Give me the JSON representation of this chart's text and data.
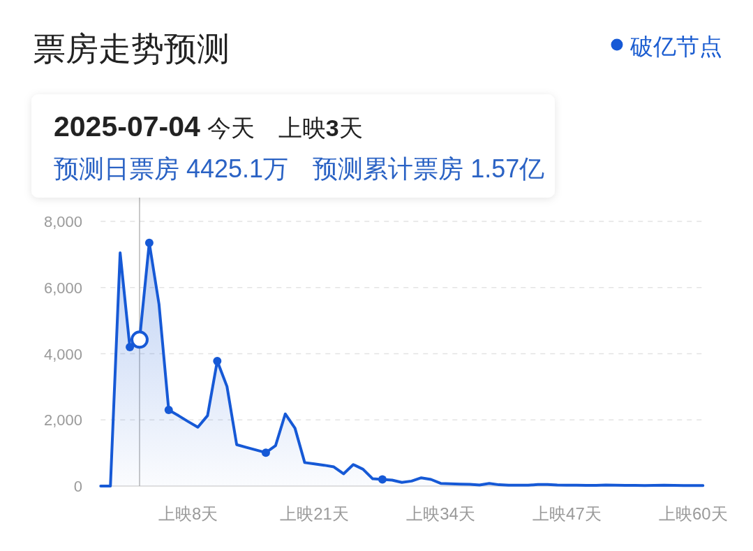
{
  "chart_data": {
    "type": "area",
    "title": "票房走势预测",
    "categories": [
      null,
      null,
      null,
      null,
      null,
      null,
      null,
      null,
      null,
      "上映8天",
      null,
      null,
      null,
      null,
      null,
      null,
      null,
      null,
      null,
      null,
      null,
      null,
      "上映21天",
      null,
      null,
      null,
      null,
      null,
      null,
      null,
      null,
      null,
      null,
      null,
      null,
      "上映34天",
      null,
      null,
      null,
      null,
      null,
      null,
      null,
      null,
      null,
      null,
      null,
      null,
      "上映47天",
      null,
      null,
      null,
      null,
      null,
      null,
      null,
      null,
      null,
      null,
      null,
      null,
      "上映60天",
      null
    ],
    "ylim": [
      0,
      8000
    ],
    "yticks": [
      0,
      {
        "value": 2000,
        "label": "2,000"
      },
      {
        "value": 4000,
        "label": "4,000"
      },
      {
        "value": 6000,
        "label": "6,000"
      },
      {
        "value": 8000,
        "label": "8,000"
      }
    ],
    "grid": "y",
    "legend": "top right",
    "line_style": "solid",
    "series": [
      {
        "color": "#1659d6",
        "values": [
          0,
          0,
          7050,
          4200,
          4425.1,
          7350,
          5500,
          2300,
          2130,
          1950,
          1780,
          2130,
          3780,
          3010,
          1250,
          1170,
          1090,
          1010,
          1220,
          2180,
          1750,
          710,
          670,
          630,
          580,
          370,
          650,
          510,
          220,
          200,
          180,
          110,
          150,
          250,
          200,
          80,
          70,
          60,
          55,
          30,
          80,
          40,
          25,
          25,
          25,
          45,
          50,
          30,
          25,
          25,
          20,
          20,
          30,
          25,
          20,
          20,
          15,
          20,
          25,
          20,
          15,
          15,
          15
        ]
      },
      {
        "type": "scatter",
        "name": "破亿节点",
        "color": "#1659d6",
        "marker": "circle",
        "values": [
          null,
          null,
          null,
          4200,
          null,
          7350,
          null,
          2300,
          null,
          null,
          null,
          null,
          3780,
          null,
          null,
          null,
          null,
          1010,
          null,
          null,
          null,
          null,
          null,
          null,
          null,
          null,
          null,
          null,
          null,
          200,
          null,
          null,
          null,
          null,
          null,
          null,
          null,
          null,
          null,
          null,
          null,
          null,
          null,
          null,
          null,
          null,
          null,
          null,
          null,
          null,
          null,
          null,
          null,
          null,
          null,
          null,
          null,
          null,
          null,
          null,
          null,
          null,
          null
        ]
      },
      {
        "type": "scatter",
        "color": "#1659d6",
        "marker": "circle",
        "values": [
          null,
          null,
          null,
          null,
          4425.1,
          null,
          null,
          null,
          null,
          null,
          null,
          null,
          null,
          null,
          null,
          null,
          null,
          null,
          null,
          null,
          null,
          null,
          null,
          null,
          null,
          null,
          null,
          null,
          null,
          null,
          null,
          null,
          null,
          null,
          null,
          null,
          null,
          null,
          null,
          null,
          null,
          null,
          null,
          null,
          null,
          null,
          null,
          null,
          null,
          null,
          null,
          null,
          null,
          null,
          null,
          null,
          null,
          null,
          null,
          null,
          null,
          null,
          null
        ]
      }
    ],
    "annotations": [
      "2025-07-04",
      "今天",
      "上映3天",
      "预测日票房 4425.1万",
      "预测累计票房 1.57亿"
    ]
  }
}
